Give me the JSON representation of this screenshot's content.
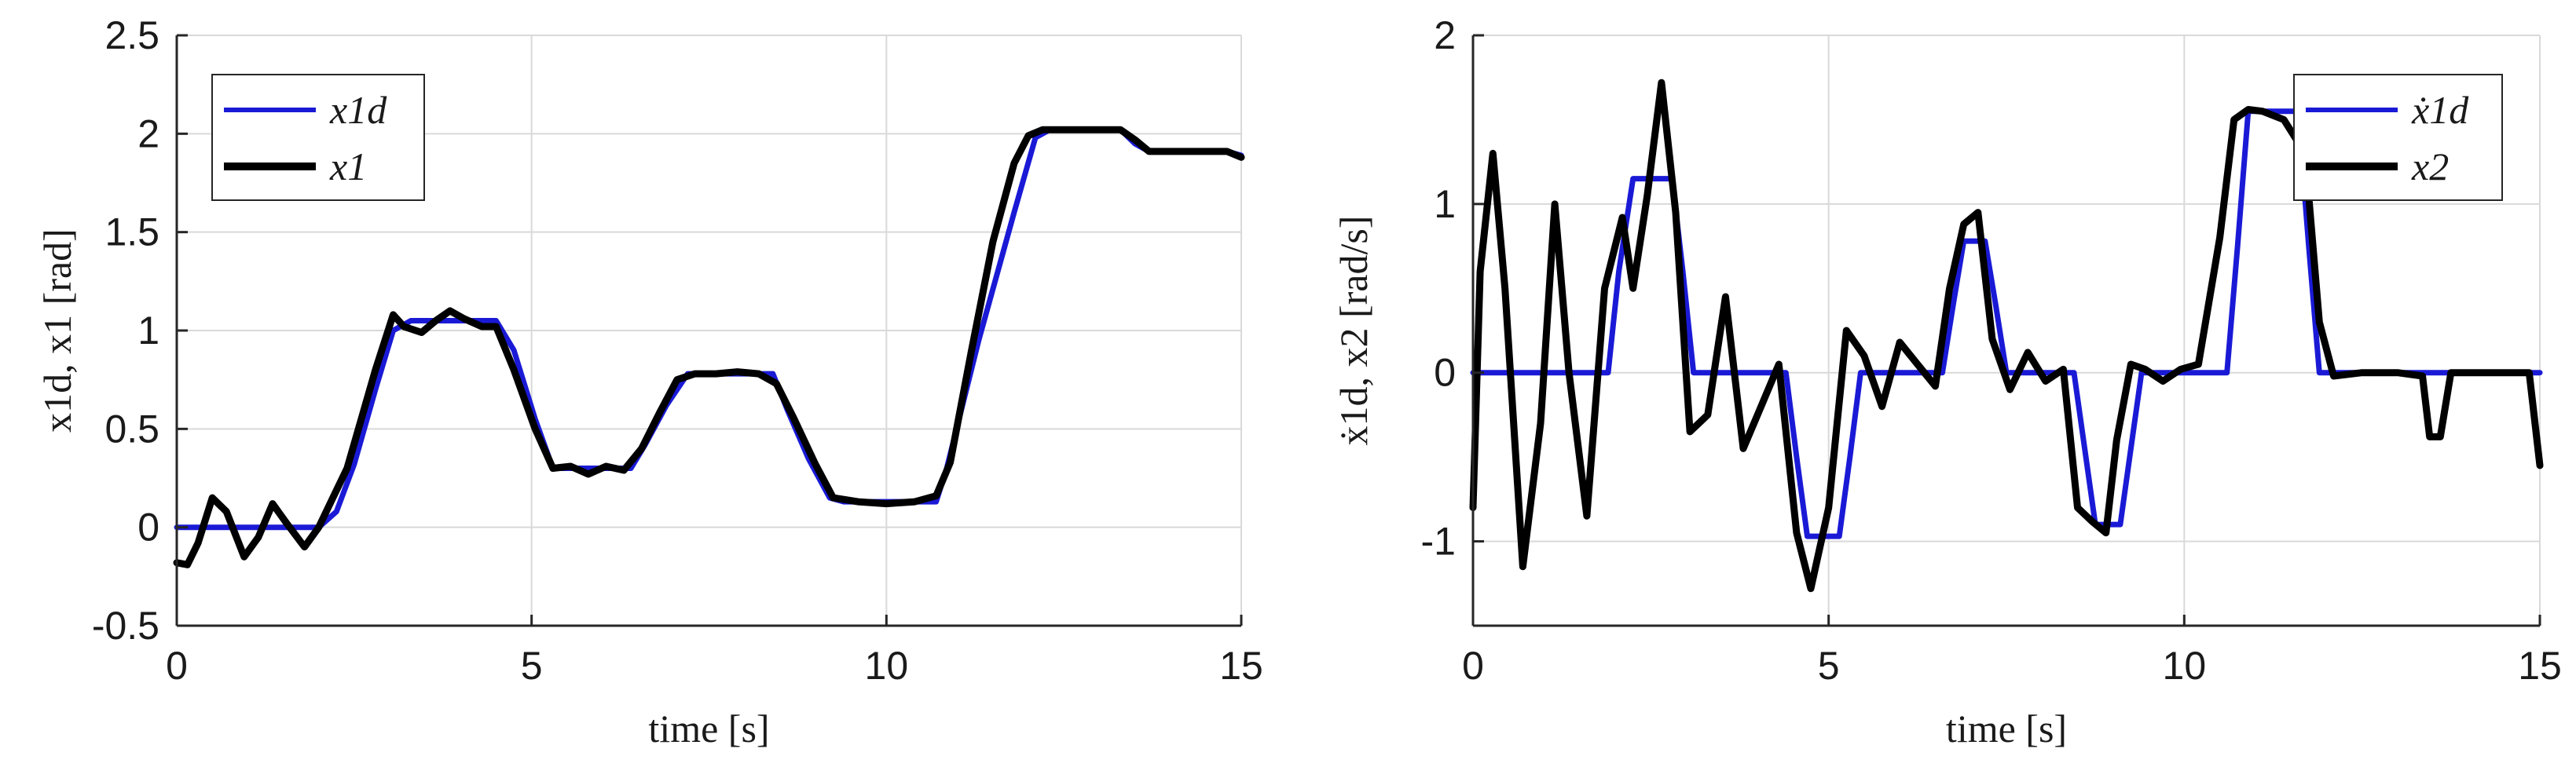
{
  "colors": {
    "desired": "#1a1ad6",
    "actual": "#000000",
    "grid": "#d9d9d9",
    "axis": "#262626"
  },
  "chart_data": [
    {
      "type": "line",
      "xlabel": "time [s]",
      "ylabel": "x1d, x1 [rad]",
      "xlim": [
        0,
        15
      ],
      "ylim": [
        -0.5,
        2.5
      ],
      "xticks": [
        0,
        5,
        10,
        15
      ],
      "yticks": [
        -0.5,
        0,
        0.5,
        1,
        1.5,
        2,
        2.5
      ],
      "grid": true,
      "legend_position": "top-left",
      "series": [
        {
          "name": "x1d",
          "color": "#1a1ad6",
          "x": [
            0,
            2.0,
            2.25,
            2.5,
            2.8,
            3.05,
            3.3,
            4.5,
            4.75,
            5.05,
            5.3,
            6.4,
            6.6,
            6.9,
            7.2,
            7.4,
            8.4,
            8.6,
            8.9,
            9.2,
            9.4,
            10.7,
            10.85,
            11.3,
            11.8,
            12.1,
            12.3,
            13.3,
            13.5,
            13.7,
            14.8,
            15
          ],
          "y": [
            0,
            0,
            0.08,
            0.32,
            0.7,
            1.0,
            1.05,
            1.05,
            0.9,
            0.55,
            0.3,
            0.3,
            0.42,
            0.62,
            0.78,
            0.78,
            0.78,
            0.6,
            0.35,
            0.15,
            0.13,
            0.13,
            0.3,
            0.95,
            1.6,
            1.98,
            2.02,
            2.02,
            1.95,
            1.91,
            1.91,
            1.89
          ]
        },
        {
          "name": "x1",
          "color": "#000000",
          "x": [
            0,
            0.15,
            0.3,
            0.5,
            0.7,
            0.95,
            1.15,
            1.35,
            1.55,
            1.8,
            2.0,
            2.2,
            2.4,
            2.6,
            2.8,
            3.05,
            3.2,
            3.45,
            3.65,
            3.85,
            4.05,
            4.3,
            4.5,
            4.75,
            5.05,
            5.3,
            5.55,
            5.8,
            6.05,
            6.3,
            6.55,
            6.8,
            7.05,
            7.3,
            7.6,
            7.9,
            8.2,
            8.45,
            8.7,
            9.0,
            9.25,
            9.6,
            10.0,
            10.4,
            10.7,
            10.9,
            11.2,
            11.5,
            11.8,
            12.0,
            12.2,
            12.5,
            12.9,
            13.3,
            13.5,
            13.7,
            14.0,
            14.5,
            14.8,
            15
          ],
          "y": [
            -0.18,
            -0.19,
            -0.08,
            0.15,
            0.08,
            -0.15,
            -0.05,
            0.12,
            0.02,
            -0.1,
            0.0,
            0.15,
            0.3,
            0.55,
            0.8,
            1.08,
            1.02,
            0.99,
            1.05,
            1.1,
            1.06,
            1.02,
            1.02,
            0.8,
            0.5,
            0.3,
            0.31,
            0.27,
            0.31,
            0.29,
            0.4,
            0.58,
            0.75,
            0.78,
            0.78,
            0.79,
            0.78,
            0.73,
            0.55,
            0.32,
            0.15,
            0.13,
            0.12,
            0.13,
            0.16,
            0.33,
            0.9,
            1.45,
            1.85,
            1.99,
            2.02,
            2.02,
            2.02,
            2.02,
            1.97,
            1.91,
            1.91,
            1.91,
            1.91,
            1.88
          ]
        }
      ]
    },
    {
      "type": "line",
      "xlabel": "time [s]",
      "ylabel": "ẋ1d, x2 [rad/s]",
      "xlim": [
        0,
        15
      ],
      "ylim": [
        -1.5,
        2
      ],
      "xticks": [
        0,
        5,
        10,
        15
      ],
      "yticks": [
        -1,
        0,
        1,
        2
      ],
      "grid": true,
      "legend_position": "top-right",
      "series": [
        {
          "name": "ẋ1d",
          "color": "#1a1ad6",
          "x": [
            0,
            1.9,
            2.05,
            2.25,
            2.8,
            2.95,
            3.1,
            4.4,
            4.55,
            4.7,
            5.15,
            5.3,
            5.45,
            6.6,
            6.75,
            6.9,
            7.2,
            7.35,
            7.5,
            8.45,
            8.6,
            8.75,
            9.1,
            9.25,
            9.4,
            10.6,
            10.75,
            10.9,
            11.6,
            11.75,
            11.9,
            15
          ],
          "y": [
            0,
            0,
            0.6,
            1.15,
            1.15,
            0.6,
            0,
            0,
            -0.5,
            -0.97,
            -0.97,
            -0.5,
            0,
            0,
            0.4,
            0.78,
            0.78,
            0.4,
            0,
            0,
            -0.45,
            -0.9,
            -0.9,
            -0.45,
            0,
            0,
            0.75,
            1.55,
            1.55,
            0.75,
            0,
            0
          ]
        },
        {
          "name": "x2",
          "color": "#000000",
          "x": [
            0,
            0.1,
            0.28,
            0.45,
            0.7,
            0.95,
            1.15,
            1.35,
            1.6,
            1.85,
            2.1,
            2.25,
            2.45,
            2.65,
            2.85,
            3.05,
            3.3,
            3.55,
            3.8,
            4.05,
            4.3,
            4.55,
            4.75,
            5.0,
            5.25,
            5.5,
            5.75,
            6.0,
            6.25,
            6.5,
            6.7,
            6.9,
            7.1,
            7.3,
            7.55,
            7.8,
            8.05,
            8.3,
            8.5,
            8.7,
            8.9,
            9.05,
            9.25,
            9.45,
            9.7,
            9.95,
            10.2,
            10.5,
            10.7,
            10.9,
            11.1,
            11.4,
            11.7,
            11.9,
            12.1,
            12.5,
            13.0,
            13.35,
            13.45,
            13.6,
            13.75,
            14.0,
            14.5,
            14.85,
            15
          ],
          "y": [
            -0.8,
            0.6,
            1.3,
            0.5,
            -1.15,
            -0.3,
            1.0,
            0.0,
            -0.85,
            0.5,
            0.92,
            0.5,
            1.05,
            1.72,
            0.95,
            -0.35,
            -0.25,
            0.45,
            -0.45,
            -0.2,
            0.05,
            -0.95,
            -1.28,
            -0.8,
            0.25,
            0.1,
            -0.2,
            0.18,
            0.05,
            -0.08,
            0.5,
            0.88,
            0.95,
            0.2,
            -0.1,
            0.12,
            -0.05,
            0.02,
            -0.8,
            -0.88,
            -0.95,
            -0.4,
            0.05,
            0.02,
            -0.05,
            0.02,
            0.05,
            0.8,
            1.5,
            1.56,
            1.55,
            1.5,
            1.3,
            0.3,
            -0.02,
            0.0,
            0.0,
            -0.02,
            -0.38,
            -0.38,
            0.0,
            0.0,
            0.0,
            0.0,
            -0.55
          ]
        }
      ]
    }
  ]
}
